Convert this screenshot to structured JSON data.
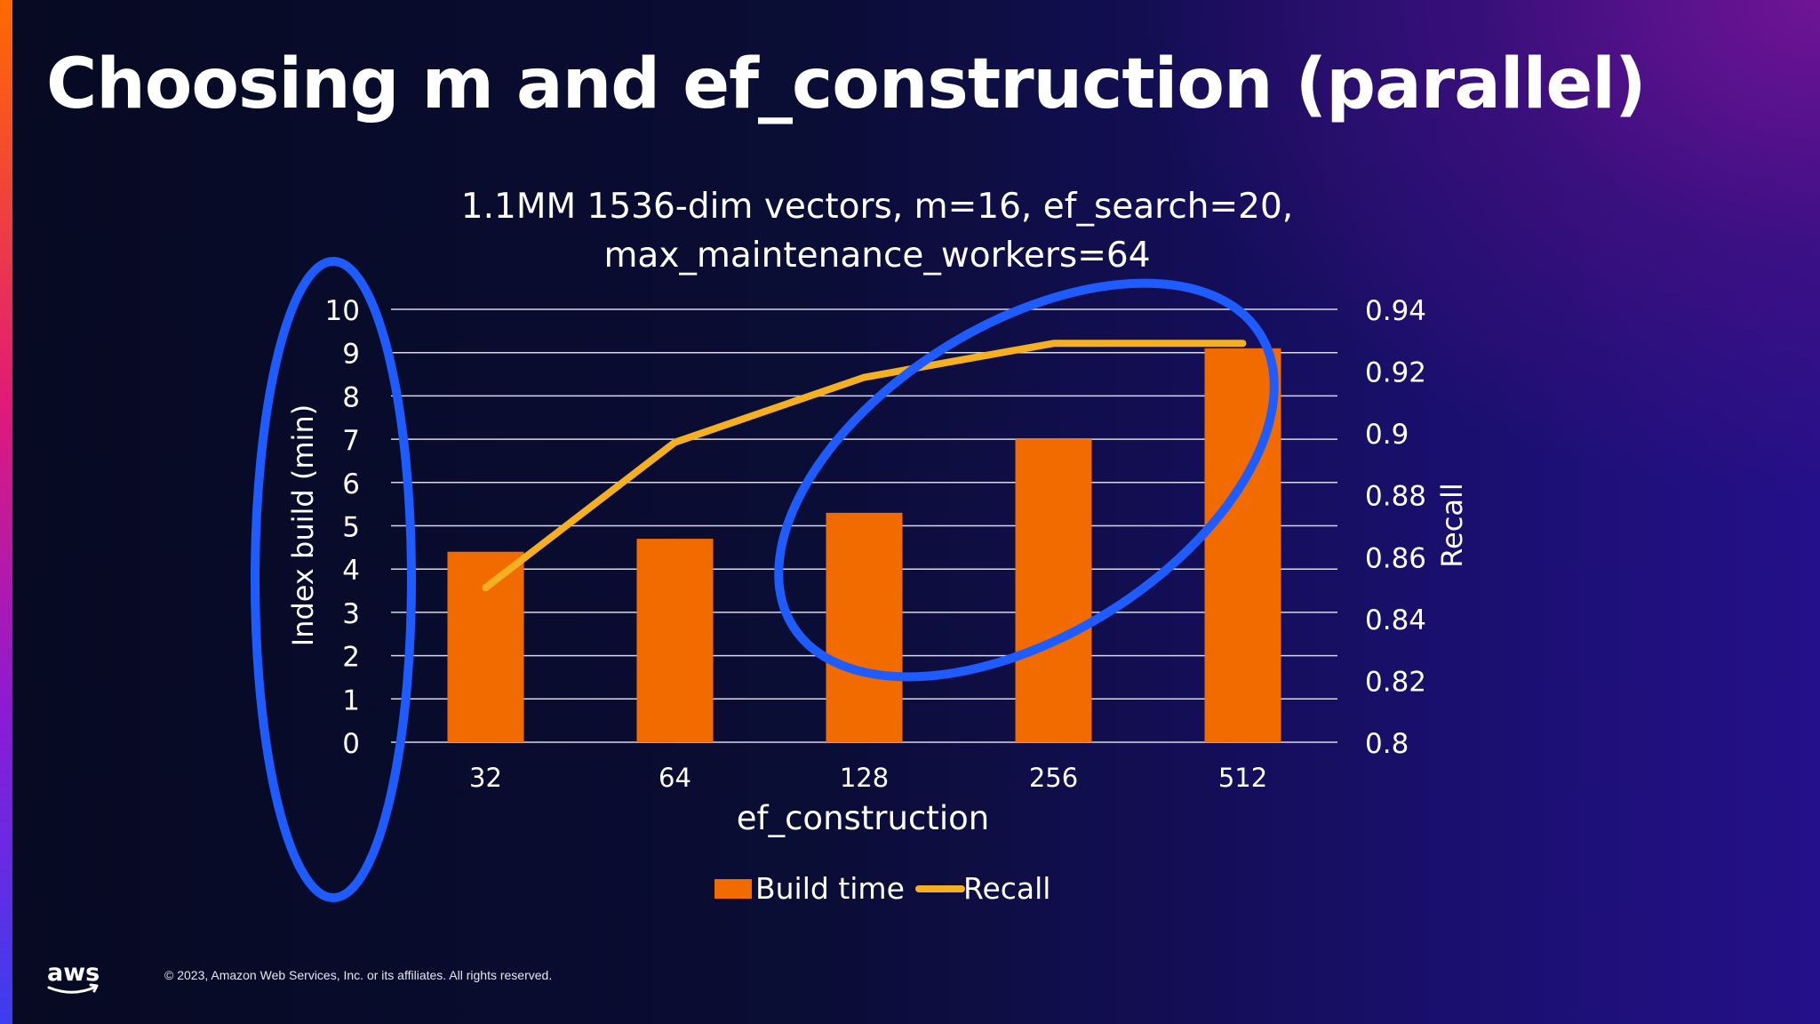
{
  "slide": {
    "title": "Choosing m and ef_construction (parallel)",
    "copyright": "© 2023, Amazon Web Services, Inc. or its affiliates. All rights reserved.",
    "logo_text": "aws"
  },
  "chart_data": {
    "type": "bar",
    "title_lines": [
      "1.1MM 1536-dim vectors, m=16, ef_search=20,",
      "max_maintenance_workers=64"
    ],
    "categories": [
      "32",
      "64",
      "128",
      "256",
      "512"
    ],
    "xlabel": "ef_construction",
    "ylabel": "Index build (min)",
    "y2label": "Recall",
    "ylim": [
      0,
      10
    ],
    "yticks": [
      "0",
      "1",
      "2",
      "3",
      "4",
      "5",
      "6",
      "7",
      "8",
      "9",
      "10"
    ],
    "y2lim": [
      0.8,
      0.94
    ],
    "y2ticks": [
      "0.8",
      "0.82",
      "0.84",
      "0.86",
      "0.88",
      "0.9",
      "0.92",
      "0.94"
    ],
    "grid": true,
    "legend_position": "bottom",
    "series": [
      {
        "name": "Build time",
        "type": "bar",
        "axis": "left",
        "color": "#f26b00",
        "values": [
          4.4,
          4.7,
          5.3,
          7.0,
          9.1
        ]
      },
      {
        "name": "Recall",
        "type": "line",
        "axis": "right",
        "color": "#f5b021",
        "values": [
          0.85,
          0.897,
          0.918,
          0.929,
          0.929
        ]
      }
    ],
    "annotations": [
      {
        "shape": "ellipse",
        "color": "#1f5cff",
        "target": "left y-axis"
      },
      {
        "shape": "ellipse",
        "color": "#1f5cff",
        "target": "ef_construction 128–512"
      }
    ]
  }
}
